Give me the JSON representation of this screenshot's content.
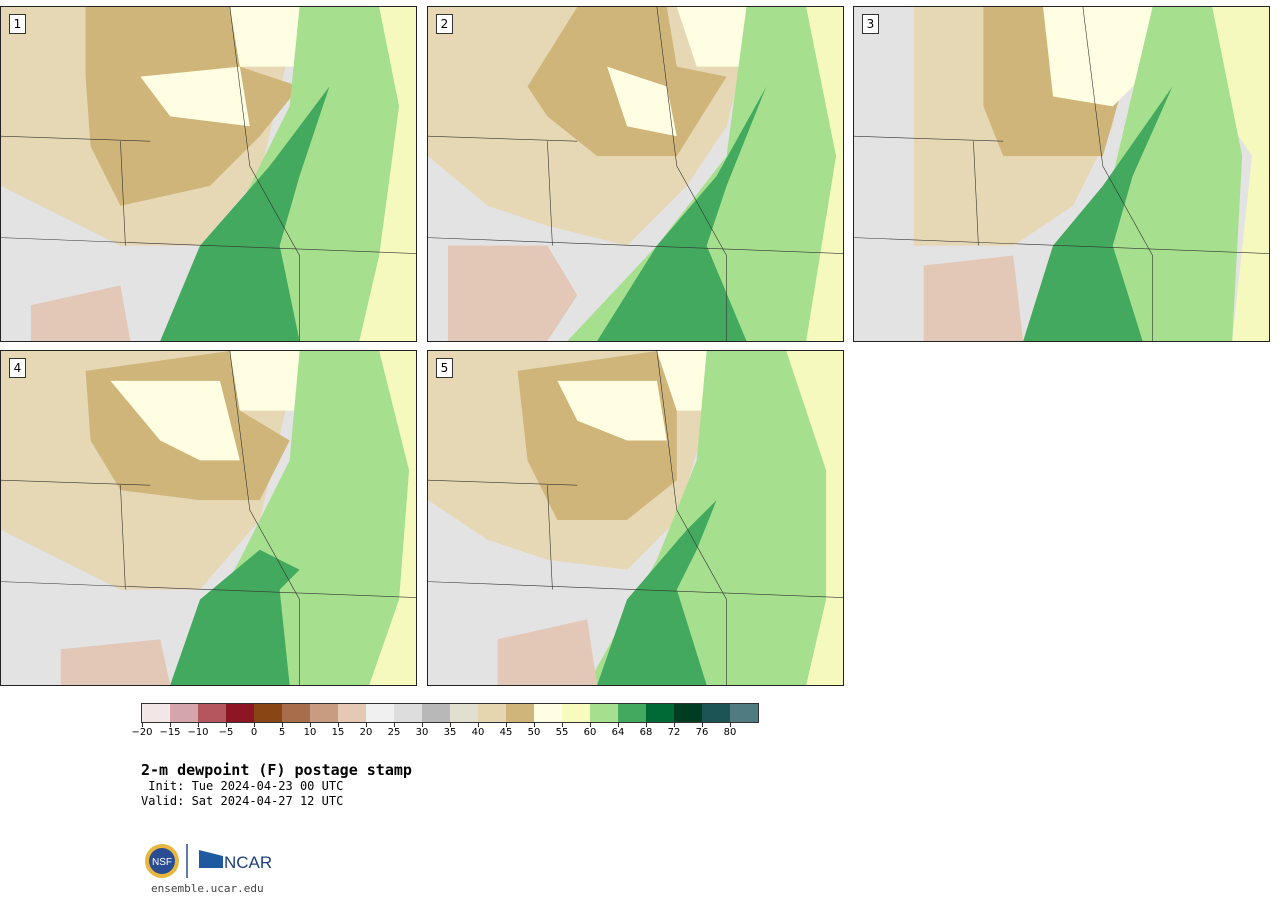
{
  "panels": [
    {
      "label": "1"
    },
    {
      "label": "2"
    },
    {
      "label": "3"
    },
    {
      "label": "4"
    },
    {
      "label": "5"
    }
  ],
  "colorbar": {
    "colors": [
      "#f2e6e6",
      "#d4a5aa",
      "#b5555d",
      "#8c1621",
      "#8a4515",
      "#a86e4c",
      "#c89c80",
      "#e6c9b5",
      "#f0f0f0",
      "#dddddd",
      "#b8b8b8",
      "#e0dfd0",
      "#e6d6b0",
      "#cfb57a",
      "#fffee2",
      "#f7fbbd",
      "#a6df8e",
      "#42a95e",
      "#006a36",
      "#003c22",
      "#1c5354",
      "#4e7c80"
    ],
    "ticks": [
      "−20",
      "−15",
      "−10",
      "−5",
      "0",
      "5",
      "10",
      "15",
      "20",
      "25",
      "30",
      "35",
      "40",
      "45",
      "50",
      "55",
      "60",
      "64",
      "68",
      "72",
      "76",
      "80"
    ]
  },
  "title": "2-m dewpoint (F) postage stamp",
  "init": " Init: Tue 2024-04-23 00 UTC",
  "valid": "Valid: Sat 2024-04-27 12 UTC",
  "logo": {
    "nsf": "NSF",
    "ncar": "NCAR"
  },
  "url": "ensemble.ucar.edu"
}
